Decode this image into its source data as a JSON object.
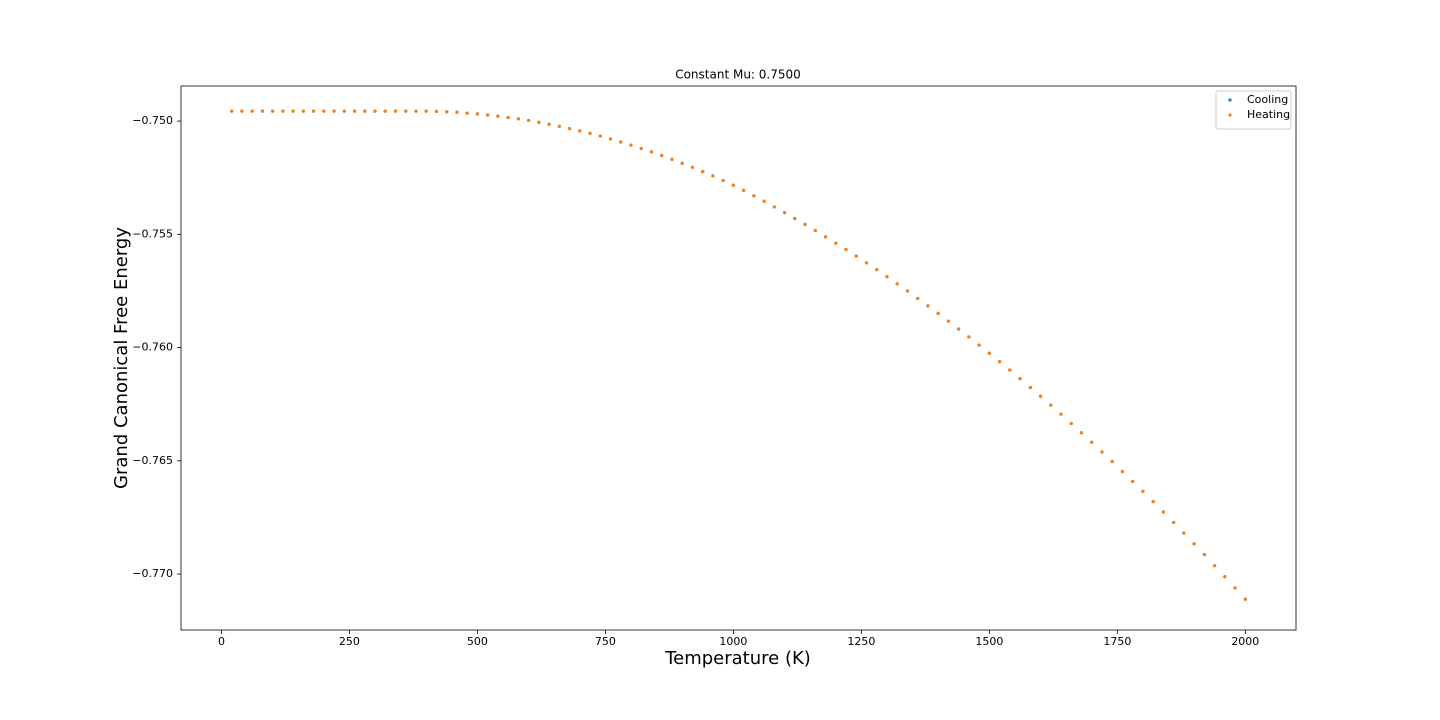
{
  "chart_data": {
    "type": "scatter",
    "title": "Constant Mu: 0.7500",
    "x_label": "Temperature (K)",
    "y_label": "Grand Canonical Free Energy",
    "x": [
      20,
      40,
      60,
      80,
      100,
      120,
      140,
      160,
      180,
      200,
      220,
      240,
      260,
      280,
      300,
      320,
      340,
      360,
      380,
      400,
      420,
      440,
      460,
      480,
      500,
      520,
      540,
      560,
      580,
      600,
      620,
      640,
      660,
      680,
      700,
      720,
      740,
      760,
      780,
      800,
      820,
      840,
      860,
      880,
      900,
      920,
      940,
      960,
      980,
      1000,
      1020,
      1040,
      1060,
      1080,
      1100,
      1120,
      1140,
      1160,
      1180,
      1200,
      1220,
      1240,
      1260,
      1280,
      1300,
      1320,
      1340,
      1360,
      1380,
      1400,
      1420,
      1440,
      1460,
      1480,
      1500,
      1520,
      1540,
      1560,
      1580,
      1600,
      1620,
      1640,
      1660,
      1680,
      1700,
      1720,
      1740,
      1760,
      1780,
      1800,
      1820,
      1840,
      1860,
      1880,
      1900,
      1920,
      1940,
      1960,
      1980,
      2000
    ],
    "series": [
      {
        "name": "Cooling",
        "color": "#1f77b4",
        "values": [
          -0.74956,
          -0.74956,
          -0.74956,
          -0.74956,
          -0.74956,
          -0.74956,
          -0.74956,
          -0.74956,
          -0.74956,
          -0.74956,
          -0.74956,
          -0.74956,
          -0.74956,
          -0.74956,
          -0.74956,
          -0.74956,
          -0.74956,
          -0.74956,
          -0.74956,
          -0.74956,
          -0.74957,
          -0.74959,
          -0.74961,
          -0.74965,
          -0.74968,
          -0.74973,
          -0.74978,
          -0.74984,
          -0.7499,
          -0.74997,
          -0.75005,
          -0.75014,
          -0.75023,
          -0.75033,
          -0.75043,
          -0.75054,
          -0.75066,
          -0.75079,
          -0.75092,
          -0.75106,
          -0.75121,
          -0.75136,
          -0.75152,
          -0.75169,
          -0.75186,
          -0.75204,
          -0.75223,
          -0.75242,
          -0.75262,
          -0.75283,
          -0.75306,
          -0.7533,
          -0.75354,
          -0.75379,
          -0.75404,
          -0.7543,
          -0.75456,
          -0.75483,
          -0.75511,
          -0.75539,
          -0.75567,
          -0.75596,
          -0.75626,
          -0.75656,
          -0.75687,
          -0.75718,
          -0.7575,
          -0.75783,
          -0.75816,
          -0.75849,
          -0.75883,
          -0.75918,
          -0.75953,
          -0.75989,
          -0.76025,
          -0.76062,
          -0.76099,
          -0.76137,
          -0.76176,
          -0.76215,
          -0.76254,
          -0.76294,
          -0.76335,
          -0.76376,
          -0.76418,
          -0.76461,
          -0.76503,
          -0.76547,
          -0.76591,
          -0.76635,
          -0.7668,
          -0.76726,
          -0.76772,
          -0.76819,
          -0.76866,
          -0.76914,
          -0.76963,
          -0.77012,
          -0.77061,
          -0.77111
        ]
      },
      {
        "name": "Heating",
        "color": "#ff7f0e",
        "values": [
          -0.74956,
          -0.74956,
          -0.74956,
          -0.74956,
          -0.74956,
          -0.74956,
          -0.74956,
          -0.74956,
          -0.74956,
          -0.74956,
          -0.74956,
          -0.74956,
          -0.74956,
          -0.74956,
          -0.74956,
          -0.74956,
          -0.74956,
          -0.74956,
          -0.74956,
          -0.74956,
          -0.74957,
          -0.74959,
          -0.74961,
          -0.74965,
          -0.74968,
          -0.74973,
          -0.74978,
          -0.74984,
          -0.7499,
          -0.74997,
          -0.75005,
          -0.75014,
          -0.75023,
          -0.75033,
          -0.75043,
          -0.75054,
          -0.75066,
          -0.75079,
          -0.75092,
          -0.75106,
          -0.75121,
          -0.75136,
          -0.75152,
          -0.75169,
          -0.75186,
          -0.75204,
          -0.75223,
          -0.75242,
          -0.75262,
          -0.75283,
          -0.75306,
          -0.7533,
          -0.75354,
          -0.75379,
          -0.75404,
          -0.7543,
          -0.75456,
          -0.75483,
          -0.75511,
          -0.75539,
          -0.75567,
          -0.75596,
          -0.75626,
          -0.75656,
          -0.75687,
          -0.75718,
          -0.7575,
          -0.75783,
          -0.75816,
          -0.75849,
          -0.75883,
          -0.75918,
          -0.75953,
          -0.75989,
          -0.76025,
          -0.76062,
          -0.76099,
          -0.76137,
          -0.76176,
          -0.76215,
          -0.76254,
          -0.76294,
          -0.76335,
          -0.76376,
          -0.76418,
          -0.76461,
          -0.76503,
          -0.76547,
          -0.76591,
          -0.76635,
          -0.7668,
          -0.76726,
          -0.76772,
          -0.76819,
          -0.76866,
          -0.76914,
          -0.76963,
          -0.77012,
          -0.77061,
          -0.77111
        ]
      }
    ],
    "xlim": [
      -79,
      2099
    ],
    "xticks": [
      0,
      250,
      500,
      750,
      1000,
      1250,
      1500,
      1750,
      2000
    ],
    "ylim": [
      -0.77247,
      -0.74845
    ],
    "yticks": [
      {
        "value": -0.75,
        "label": "−0.750"
      },
      {
        "value": -0.755,
        "label": "−0.755"
      },
      {
        "value": -0.76,
        "label": "−0.760"
      },
      {
        "value": -0.765,
        "label": "−0.765"
      },
      {
        "value": -0.77,
        "label": "−0.770"
      }
    ],
    "grid": false,
    "legend": "upper right"
  }
}
